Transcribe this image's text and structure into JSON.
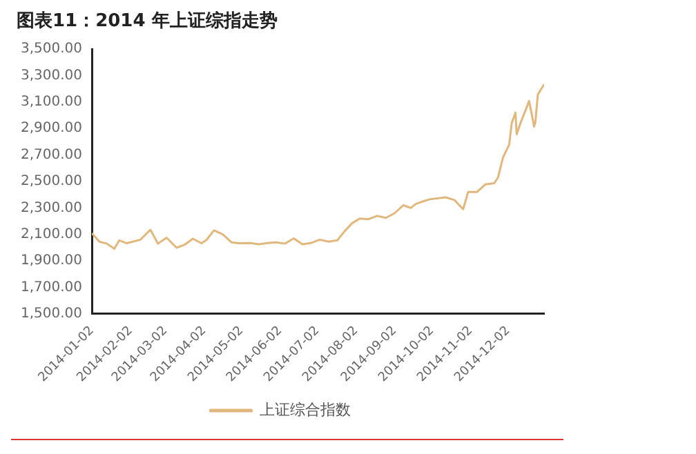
{
  "chart_data": {
    "type": "line",
    "title": "图表11：2014 年上证综指走势",
    "x": [
      "2014-01-02",
      "2014-01-08",
      "2014-01-14",
      "2014-01-20",
      "2014-01-24",
      "2014-01-30",
      "2014-02-10",
      "2014-02-18",
      "2014-02-24",
      "2014-03-03",
      "2014-03-11",
      "2014-03-18",
      "2014-03-24",
      "2014-03-31",
      "2014-04-04",
      "2014-04-10",
      "2014-04-17",
      "2014-04-24",
      "2014-04-30",
      "2014-05-09",
      "2014-05-16",
      "2014-05-23",
      "2014-05-30",
      "2014-06-06",
      "2014-06-13",
      "2014-06-20",
      "2014-06-27",
      "2014-07-04",
      "2014-07-11",
      "2014-07-18",
      "2014-07-24",
      "2014-07-30",
      "2014-08-05",
      "2014-08-12",
      "2014-08-19",
      "2014-08-26",
      "2014-09-02",
      "2014-09-09",
      "2014-09-15",
      "2014-09-19",
      "2014-09-25",
      "2014-09-30",
      "2014-10-13",
      "2014-10-20",
      "2014-10-27",
      "2014-10-31",
      "2014-11-07",
      "2014-11-14",
      "2014-11-21",
      "2014-11-24",
      "2014-11-28",
      "2014-12-03",
      "2014-12-05",
      "2014-12-08",
      "2014-12-09",
      "2014-12-12",
      "2014-12-17",
      "2014-12-19",
      "2014-12-23",
      "2014-12-24",
      "2014-12-26",
      "2014-12-31"
    ],
    "series": [
      {
        "name": "上证综合指数",
        "color": "#e2b77c",
        "values": [
          2109,
          2045,
          2030,
          1991,
          2055,
          2033,
          2060,
          2135,
          2030,
          2075,
          1999,
          2025,
          2067,
          2033,
          2058,
          2130,
          2100,
          2040,
          2033,
          2035,
          2025,
          2035,
          2040,
          2030,
          2070,
          2025,
          2035,
          2060,
          2045,
          2055,
          2125,
          2185,
          2220,
          2215,
          2240,
          2225,
          2260,
          2320,
          2300,
          2330,
          2350,
          2365,
          2380,
          2360,
          2290,
          2420,
          2420,
          2478,
          2487,
          2530,
          2680,
          2780,
          2940,
          3020,
          2856,
          2940,
          3060,
          3108,
          2915,
          2950,
          3157,
          3234
        ]
      }
    ],
    "xlim": [
      "2014-01-02",
      "2014-12-31"
    ],
    "xticks": [
      "2014-01-02",
      "2014-02-02",
      "2014-03-02",
      "2014-04-02",
      "2014-05-02",
      "2014-06-02",
      "2014-07-02",
      "2014-08-02",
      "2014-09-02",
      "2014-10-02",
      "2014-11-02",
      "2014-12-02"
    ],
    "ylim": [
      1500,
      3500
    ],
    "yticks": [
      {
        "value": 1500,
        "label": "1,500.00"
      },
      {
        "value": 1700,
        "label": "1,700.00"
      },
      {
        "value": 1900,
        "label": "1,900.00"
      },
      {
        "value": 2100,
        "label": "2,100.00"
      },
      {
        "value": 2300,
        "label": "2,300.00"
      },
      {
        "value": 2500,
        "label": "2,500.00"
      },
      {
        "value": 2700,
        "label": "2,700.00"
      },
      {
        "value": 2900,
        "label": "2,900.00"
      },
      {
        "value": 3100,
        "label": "3,100.00"
      },
      {
        "value": 3300,
        "label": "3,300.00"
      },
      {
        "value": 3500,
        "label": "3,500.00"
      }
    ],
    "legend": "bottom",
    "grid": false,
    "marker": "none",
    "line_style": "solid"
  }
}
